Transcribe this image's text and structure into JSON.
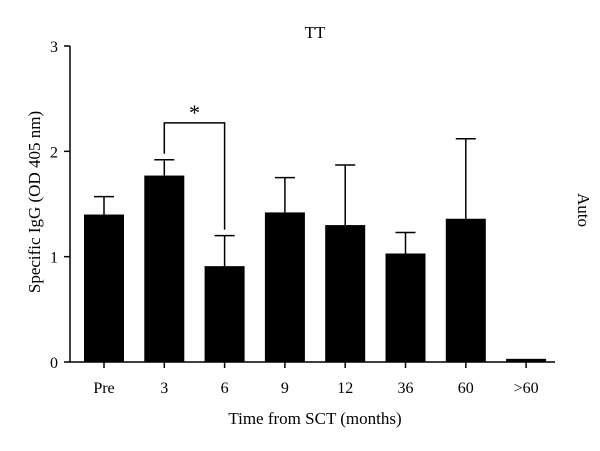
{
  "chart_data": {
    "type": "bar",
    "title": "TT",
    "side_label": "Auto",
    "xlabel": "Time from SCT (months)",
    "ylabel": "Specific IgG (OD 405 nm)",
    "ylim": [
      0,
      3
    ],
    "yticks": [
      "0",
      "1",
      "2",
      "3"
    ],
    "categories": [
      "Pre",
      "3",
      "6",
      "9",
      "12",
      "36",
      "60",
      ">60"
    ],
    "values": [
      1.4,
      1.77,
      0.91,
      1.42,
      1.3,
      1.03,
      1.36,
      0.03
    ],
    "error_upper": [
      0.17,
      0.15,
      0.29,
      0.33,
      0.57,
      0.2,
      0.76,
      0.0
    ],
    "significance": {
      "from": 1,
      "to": 2,
      "label": "*",
      "level": 2.27
    },
    "colors": {
      "bar": "#000000",
      "axis": "#000000",
      "background": "#ffffff"
    },
    "grid": false
  }
}
